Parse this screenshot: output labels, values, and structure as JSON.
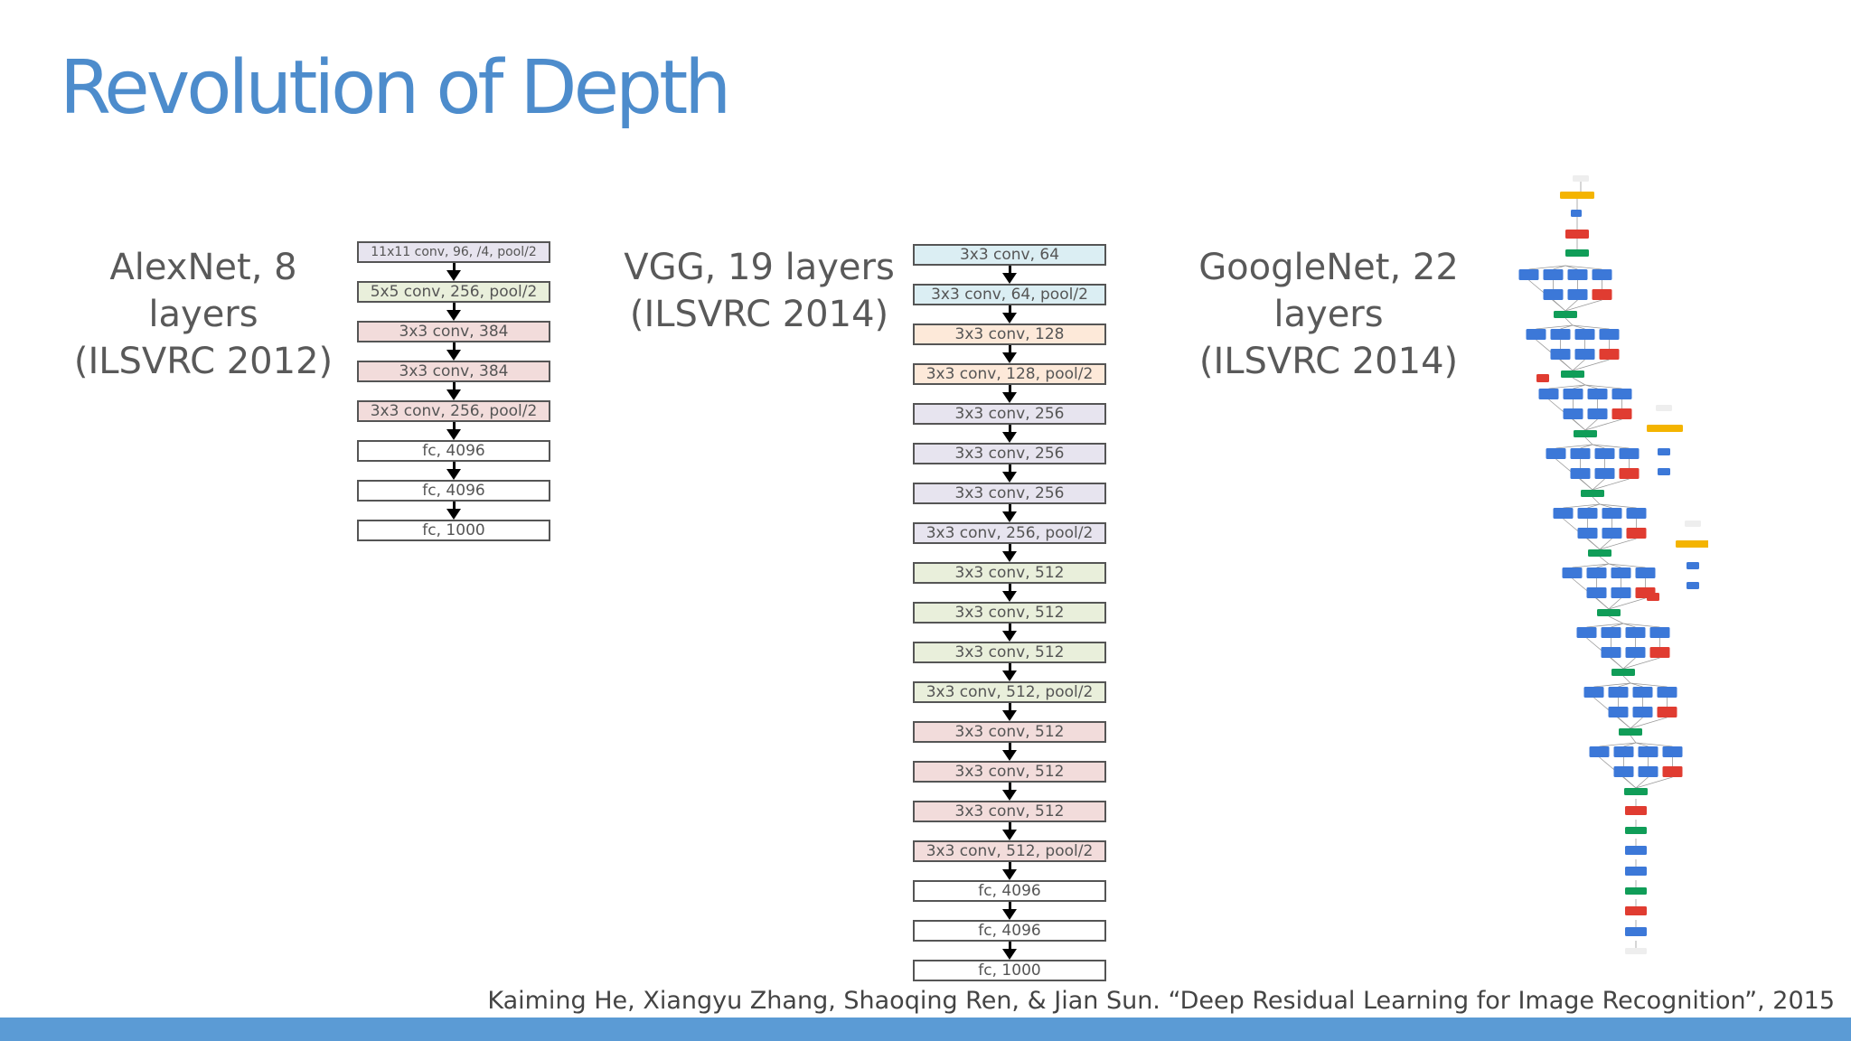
{
  "slide": {
    "title": "Revolution of Depth",
    "citation": "Kaiming He, Xiangyu Zhang, Shaoqing Ren, & Jian Sun. “Deep Residual Learning for Image Recognition”, 2015"
  },
  "colors": {
    "title": "#4d8ccc",
    "footer": "#5b9bd5",
    "purple": "#e7e4ef",
    "green": "#e9efdb",
    "pink": "#f2dcdb",
    "cyan": "#dbeef3",
    "orange": "#fde9d9",
    "white": "#ffffff"
  },
  "alexnet": {
    "line1": "AlexNet, 8 layers",
    "line2": "(ILSVRC 2012)",
    "layers": [
      {
        "label": "11x11 conv, 96, /4, pool/2",
        "color": "purple"
      },
      {
        "label": "5x5 conv, 256, pool/2",
        "color": "green"
      },
      {
        "label": "3x3 conv, 384",
        "color": "pink"
      },
      {
        "label": "3x3 conv, 384",
        "color": "pink"
      },
      {
        "label": "3x3 conv, 256, pool/2",
        "color": "pink"
      },
      {
        "label": "fc, 4096",
        "color": "white"
      },
      {
        "label": "fc, 4096",
        "color": "white"
      },
      {
        "label": "fc, 1000",
        "color": "white"
      }
    ]
  },
  "vgg": {
    "line1": "VGG, 19 layers",
    "line2": "(ILSVRC 2014)",
    "layers": [
      {
        "label": "3x3 conv, 64",
        "color": "cyan"
      },
      {
        "label": "3x3 conv, 64, pool/2",
        "color": "cyan"
      },
      {
        "label": "3x3 conv, 128",
        "color": "orange"
      },
      {
        "label": "3x3 conv, 128, pool/2",
        "color": "orange"
      },
      {
        "label": "3x3 conv, 256",
        "color": "purple"
      },
      {
        "label": "3x3 conv, 256",
        "color": "purple"
      },
      {
        "label": "3x3 conv, 256",
        "color": "purple"
      },
      {
        "label": "3x3 conv, 256, pool/2",
        "color": "purple"
      },
      {
        "label": "3x3 conv, 512",
        "color": "green"
      },
      {
        "label": "3x3 conv, 512",
        "color": "green"
      },
      {
        "label": "3x3 conv, 512",
        "color": "green"
      },
      {
        "label": "3x3 conv, 512, pool/2",
        "color": "green"
      },
      {
        "label": "3x3 conv, 512",
        "color": "pink"
      },
      {
        "label": "3x3 conv, 512",
        "color": "pink"
      },
      {
        "label": "3x3 conv, 512",
        "color": "pink"
      },
      {
        "label": "3x3 conv, 512, pool/2",
        "color": "pink"
      },
      {
        "label": "fc, 4096",
        "color": "white"
      },
      {
        "label": "fc, 4096",
        "color": "white"
      },
      {
        "label": "fc, 1000",
        "color": "white"
      }
    ]
  },
  "googlenet": {
    "line1": "GoogleNet, 22 layers",
    "line2": "(ILSVRC 2014)",
    "node_colors": {
      "blue": "#3c78d8",
      "red": "#e03c31",
      "green": "#109d58",
      "yellow": "#f4b400",
      "gray": "#eeeeee"
    }
  }
}
